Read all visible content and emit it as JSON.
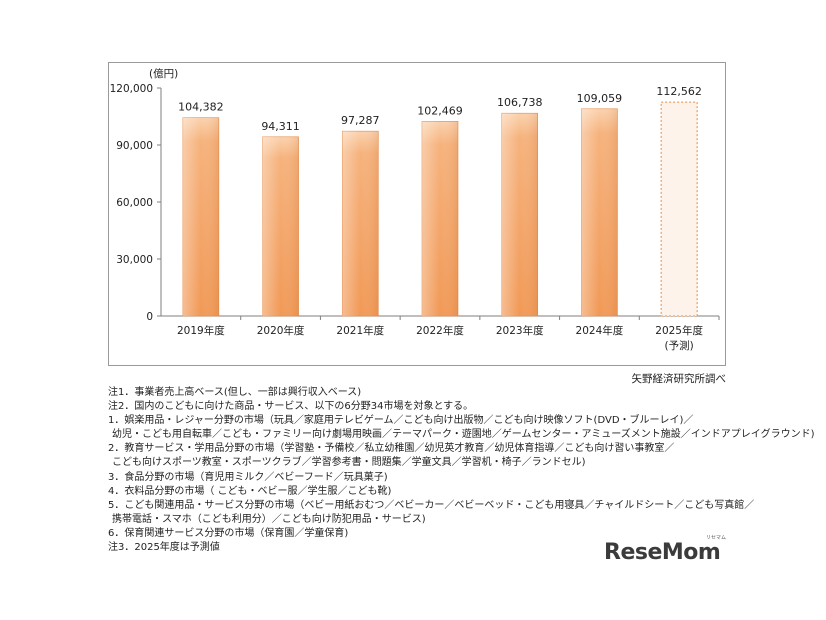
{
  "chart_data": {
    "type": "bar",
    "unit": "(億円)",
    "categories": [
      "2019年度",
      "2020年度",
      "2021年度",
      "2022年度",
      "2023年度",
      "2024年度",
      "2025年度"
    ],
    "category_sublabels": [
      "",
      "",
      "",
      "",
      "",
      "",
      "(予測)"
    ],
    "values": [
      104382,
      94311,
      97287,
      102469,
      106738,
      109059,
      112562
    ],
    "value_labels": [
      "104,382",
      "94,311",
      "97,287",
      "102,469",
      "106,738",
      "109,059",
      "112,562"
    ],
    "forecast": [
      false,
      false,
      false,
      false,
      false,
      false,
      true
    ],
    "ylim": [
      0,
      120000
    ],
    "yticks": [
      0,
      30000,
      60000,
      90000,
      120000
    ],
    "ytick_labels": [
      "0",
      "30,000",
      "60,000",
      "90,000",
      "120,000"
    ],
    "colors": {
      "bar_top": "#fbd7b8",
      "bar_main": "#f4a467",
      "bar_edge": "#e58a46",
      "forecast_fill": "#fdf3ea",
      "forecast_edge": "#e58a46"
    }
  },
  "source": "矢野経済研究所調べ",
  "notes": [
    "注1．事業者売上高ベース(但し、一部は興行収入ベース)",
    "注2．国内のこどもに向けた商品・サービス、以下の6分野34市場を対象とする。",
    "1．娯楽用品・レジャー分野の市場（玩具／家庭用テレビゲーム／こども向け出版物／こども向け映像ソフト(DVD・ブルーレイ)／",
    "幼児・こども用自転車／こども・ファミリー向け劇場用映画／テーマパーク・遊園地／ゲームセンター・アミューズメント施設／インドアプレイグラウンド)",
    "2．教育サービス・学用品分野の市場（学習塾・予備校／私立幼稚園／幼児英才教育／幼児体育指導／こども向け習い事教室／",
    "こども向けスポーツ教室・スポーツクラブ／学習参考書・問題集／学童文具／学習机・椅子／ランドセル)",
    "3．食品分野の市場（育児用ミルク／ベビーフード／玩具菓子)",
    "4．衣料品分野の市場（ こども・ベビー服／学生服／こども靴)",
    "5．こども関連用品・サービス分野の市場（ベビー用紙おむつ／ベビーカー／ベビーベッド・こども用寝具／チャイルドシート／こども写真館／",
    "携帯電話・スマホ（こども利用分）／こども向け防犯用品・サービス)",
    "6．保育関連サービス分野の市場（保育園／学童保育)",
    "注3．2025年度は予測値"
  ],
  "logo": {
    "text": "ReseMom",
    "sub": "リセマム"
  }
}
